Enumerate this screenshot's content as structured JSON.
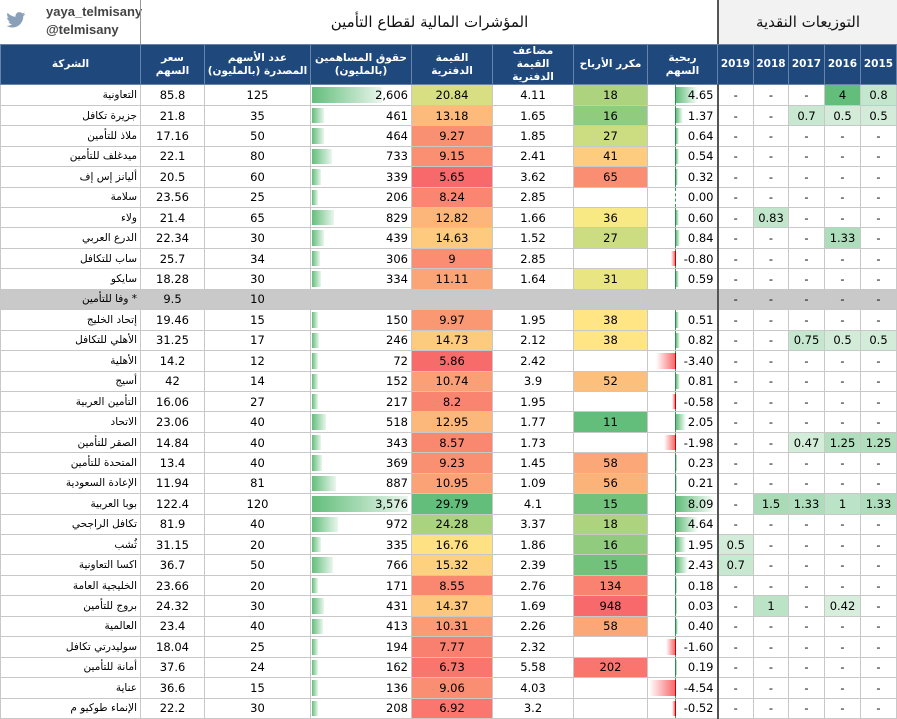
{
  "header": {
    "handle": "yaya_telmisany",
    "handle_at": "@telmisany",
    "title_main": "المؤشرات المالية لقطاع التأمين",
    "title_div": "التوزيعات النقدية"
  },
  "columns": {
    "company": "الشركة",
    "price": "سعر السهم",
    "shares": "عدد الأسهم المصدرة (بالمليون)",
    "equity": "حقوق المساهمين (بالمليون)",
    "bv": "القيمة الدفترية",
    "pb": "مضاعف القيمة الدفترية",
    "pe": "مكرر الأرباح",
    "eps": "ربحية السهم",
    "y2019": "2019",
    "y2018": "2018",
    "y2017": "2017",
    "y2016": "2016",
    "y2015": "2015"
  },
  "colors": {
    "header_bg": "#1f497d",
    "green": "#63be7b",
    "yellow": "#ffeb84",
    "red": "#f8696b",
    "gray_row": "#c9c9c9"
  },
  "rows": [
    {
      "company": "التعاونية",
      "price": "85.8",
      "shares": "125",
      "equity": "2,606",
      "bv": "20.84",
      "pb": "4.11",
      "pe": "18",
      "eps": "4.65",
      "d2019": "-",
      "d2018": "-",
      "d2017": "-",
      "d2016": "4",
      "d2015": "0.8"
    },
    {
      "company": "جزيرة تكافل",
      "price": "21.8",
      "shares": "35",
      "equity": "461",
      "bv": "13.18",
      "pb": "1.65",
      "pe": "16",
      "eps": "1.37",
      "d2019": "-",
      "d2018": "-",
      "d2017": "0.7",
      "d2016": "0.5",
      "d2015": "0.5"
    },
    {
      "company": "ملاذ للتأمين",
      "price": "17.16",
      "shares": "50",
      "equity": "464",
      "bv": "9.27",
      "pb": "1.85",
      "pe": "27",
      "eps": "0.64",
      "d2019": "-",
      "d2018": "-",
      "d2017": "-",
      "d2016": "-",
      "d2015": "-"
    },
    {
      "company": "ميدغلف للتأمين",
      "price": "22.1",
      "shares": "80",
      "equity": "733",
      "bv": "9.15",
      "pb": "2.41",
      "pe": "41",
      "eps": "0.54",
      "d2019": "-",
      "d2018": "-",
      "d2017": "-",
      "d2016": "-",
      "d2015": "-"
    },
    {
      "company": "أليانز إس إف",
      "price": "20.5",
      "shares": "60",
      "equity": "339",
      "bv": "5.65",
      "pb": "3.62",
      "pe": "65",
      "eps": "0.32",
      "d2019": "-",
      "d2018": "-",
      "d2017": "-",
      "d2016": "-",
      "d2015": "-"
    },
    {
      "company": "سلامة",
      "price": "23.56",
      "shares": "25",
      "equity": "206",
      "bv": "8.24",
      "pb": "2.85",
      "pe": "",
      "eps": "0.00",
      "d2019": "-",
      "d2018": "-",
      "d2017": "-",
      "d2016": "-",
      "d2015": "-"
    },
    {
      "company": "ولاء",
      "price": "21.4",
      "shares": "65",
      "equity": "829",
      "bv": "12.82",
      "pb": "1.66",
      "pe": "36",
      "eps": "0.60",
      "d2019": "-",
      "d2018": "0.83",
      "d2017": "-",
      "d2016": "-",
      "d2015": "-"
    },
    {
      "company": "الدرع العربي",
      "price": "22.34",
      "shares": "30",
      "equity": "439",
      "bv": "14.63",
      "pb": "1.52",
      "pe": "27",
      "eps": "0.84",
      "d2019": "-",
      "d2018": "-",
      "d2017": "-",
      "d2016": "1.33",
      "d2015": "-"
    },
    {
      "company": "ساب للتكافل",
      "price": "25.7",
      "shares": "34",
      "equity": "306",
      "bv": "9",
      "pb": "2.85",
      "pe": "",
      "eps": "-0.80",
      "d2019": "-",
      "d2018": "-",
      "d2017": "-",
      "d2016": "-",
      "d2015": "-"
    },
    {
      "company": "سايكو",
      "price": "18.28",
      "shares": "30",
      "equity": "334",
      "bv": "11.11",
      "pb": "1.64",
      "pe": "31",
      "eps": "0.59",
      "d2019": "-",
      "d2018": "-",
      "d2017": "-",
      "d2016": "-",
      "d2015": "-"
    },
    {
      "company": "وفا للتأمين *",
      "price": "9.5",
      "shares": "10",
      "equity": "",
      "bv": "",
      "pb": "",
      "pe": "",
      "eps": "",
      "d2019": "-",
      "d2018": "-",
      "d2017": "-",
      "d2016": "-",
      "d2015": "-",
      "gray": true
    },
    {
      "company": "إتحاد الخليج",
      "price": "19.46",
      "shares": "15",
      "equity": "150",
      "bv": "9.97",
      "pb": "1.95",
      "pe": "38",
      "eps": "0.51",
      "d2019": "-",
      "d2018": "-",
      "d2017": "-",
      "d2016": "-",
      "d2015": "-"
    },
    {
      "company": "الأهلي للتكافل",
      "price": "31.25",
      "shares": "17",
      "equity": "246",
      "bv": "14.73",
      "pb": "2.12",
      "pe": "38",
      "eps": "0.82",
      "d2019": "-",
      "d2018": "-",
      "d2017": "0.75",
      "d2016": "0.5",
      "d2015": "0.5"
    },
    {
      "company": "الأهلية",
      "price": "14.2",
      "shares": "12",
      "equity": "72",
      "bv": "5.86",
      "pb": "2.42",
      "pe": "",
      "eps": "-3.40",
      "d2019": "-",
      "d2018": "-",
      "d2017": "-",
      "d2016": "-",
      "d2015": "-"
    },
    {
      "company": "أسيج",
      "price": "42",
      "shares": "14",
      "equity": "152",
      "bv": "10.74",
      "pb": "3.9",
      "pe": "52",
      "eps": "0.81",
      "d2019": "-",
      "d2018": "-",
      "d2017": "-",
      "d2016": "-",
      "d2015": "-"
    },
    {
      "company": "التأمين العربية",
      "price": "16.06",
      "shares": "27",
      "equity": "217",
      "bv": "8.2",
      "pb": "1.95",
      "pe": "",
      "eps": "-0.58",
      "d2019": "-",
      "d2018": "-",
      "d2017": "-",
      "d2016": "-",
      "d2015": "-"
    },
    {
      "company": "الاتحاد",
      "price": "23.06",
      "shares": "40",
      "equity": "518",
      "bv": "12.95",
      "pb": "1.77",
      "pe": "11",
      "eps": "2.05",
      "d2019": "-",
      "d2018": "-",
      "d2017": "-",
      "d2016": "-",
      "d2015": "-"
    },
    {
      "company": "الصقر للتأمين",
      "price": "14.84",
      "shares": "40",
      "equity": "343",
      "bv": "8.57",
      "pb": "1.73",
      "pe": "",
      "eps": "-1.98",
      "d2019": "-",
      "d2018": "-",
      "d2017": "0.47",
      "d2016": "1.25",
      "d2015": "1.25"
    },
    {
      "company": "المتحدة للتأمين",
      "price": "13.4",
      "shares": "40",
      "equity": "369",
      "bv": "9.23",
      "pb": "1.45",
      "pe": "58",
      "eps": "0.23",
      "d2019": "-",
      "d2018": "-",
      "d2017": "-",
      "d2016": "-",
      "d2015": "-"
    },
    {
      "company": "الإعادة السعودية",
      "price": "11.94",
      "shares": "81",
      "equity": "887",
      "bv": "10.95",
      "pb": "1.09",
      "pe": "56",
      "eps": "0.21",
      "d2019": "-",
      "d2018": "-",
      "d2017": "-",
      "d2016": "-",
      "d2015": "-"
    },
    {
      "company": "بوبا العربية",
      "price": "122.4",
      "shares": "120",
      "equity": "3,576",
      "bv": "29.79",
      "pb": "4.1",
      "pe": "15",
      "eps": "8.09",
      "d2019": "-",
      "d2018": "1.5",
      "d2017": "1.33",
      "d2016": "1",
      "d2015": "1.33"
    },
    {
      "company": "تكافل الراجحي",
      "price": "81.9",
      "shares": "40",
      "equity": "972",
      "bv": "24.28",
      "pb": "3.37",
      "pe": "18",
      "eps": "4.64",
      "d2019": "-",
      "d2018": "-",
      "d2017": "-",
      "d2016": "-",
      "d2015": "-"
    },
    {
      "company": "ثُشب",
      "price": "31.15",
      "shares": "20",
      "equity": "335",
      "bv": "16.76",
      "pb": "1.86",
      "pe": "16",
      "eps": "1.95",
      "d2019": "0.5",
      "d2018": "-",
      "d2017": "-",
      "d2016": "-",
      "d2015": "-"
    },
    {
      "company": "اكسا التعاونية",
      "price": "36.7",
      "shares": "50",
      "equity": "766",
      "bv": "15.32",
      "pb": "2.39",
      "pe": "15",
      "eps": "2.43",
      "d2019": "0.7",
      "d2018": "-",
      "d2017": "-",
      "d2016": "-",
      "d2015": "-"
    },
    {
      "company": "الخليجية العامة",
      "price": "23.66",
      "shares": "20",
      "equity": "171",
      "bv": "8.55",
      "pb": "2.76",
      "pe": "134",
      "eps": "0.18",
      "d2019": "-",
      "d2018": "-",
      "d2017": "-",
      "d2016": "-",
      "d2015": "-"
    },
    {
      "company": "بروج للتأمين",
      "price": "24.32",
      "shares": "30",
      "equity": "431",
      "bv": "14.37",
      "pb": "1.69",
      "pe": "948",
      "eps": "0.03",
      "d2019": "-",
      "d2018": "1",
      "d2017": "-",
      "d2016": "0.42",
      "d2015": "-"
    },
    {
      "company": "العالمية",
      "price": "23.4",
      "shares": "40",
      "equity": "413",
      "bv": "10.31",
      "pb": "2.26",
      "pe": "58",
      "eps": "0.40",
      "d2019": "-",
      "d2018": "-",
      "d2017": "-",
      "d2016": "-",
      "d2015": "-"
    },
    {
      "company": "سوليدرتي تكافل",
      "price": "18.04",
      "shares": "25",
      "equity": "194",
      "bv": "7.77",
      "pb": "2.32",
      "pe": "",
      "eps": "-1.60",
      "d2019": "-",
      "d2018": "-",
      "d2017": "-",
      "d2016": "-",
      "d2015": "-"
    },
    {
      "company": "أمانة للتأمين",
      "price": "37.6",
      "shares": "24",
      "equity": "162",
      "bv": "6.73",
      "pb": "5.58",
      "pe": "202",
      "eps": "0.19",
      "d2019": "-",
      "d2018": "-",
      "d2017": "-",
      "d2016": "-",
      "d2015": "-"
    },
    {
      "company": "عناية",
      "price": "36.6",
      "shares": "15",
      "equity": "136",
      "bv": "9.06",
      "pb": "4.03",
      "pe": "",
      "eps": "-4.54",
      "d2019": "-",
      "d2018": "-",
      "d2017": "-",
      "d2016": "-",
      "d2015": "-"
    },
    {
      "company": "الإنماء طوكيو م",
      "price": "22.2",
      "shares": "30",
      "equity": "208",
      "bv": "6.92",
      "pb": "3.2",
      "pe": "",
      "eps": "-0.52",
      "d2019": "-",
      "d2018": "-",
      "d2017": "-",
      "d2016": "-",
      "d2015": "-"
    }
  ]
}
